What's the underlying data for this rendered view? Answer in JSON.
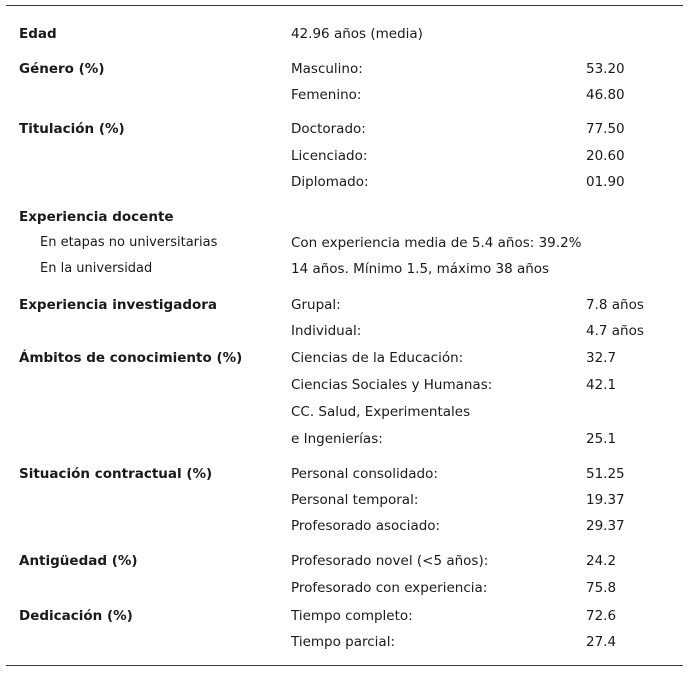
{
  "table": {
    "rows": [
      {
        "label": "Edad",
        "value": "42.96 años (media)"
      },
      {
        "label": "Género (%)",
        "items": [
          {
            "name": "Masculino:",
            "value": "53.20"
          },
          {
            "name": "Femenino:",
            "value": "46.80"
          }
        ]
      },
      {
        "label": "Titulación (%)",
        "items": [
          {
            "name": "Doctorado:",
            "value": "77.50"
          },
          {
            "name": "Licenciado:",
            "value": "20.60"
          },
          {
            "name": "Diplomado:",
            "value": "01.90"
          }
        ]
      },
      {
        "label": "Experiencia docente",
        "subitems": [
          {
            "name": "En etapas no universitarias",
            "value": "Con experiencia media de 5.4 años: 39.2%"
          },
          {
            "name": "En la universidad",
            "value": "14 años. Mínimo 1.5, máximo 38 años"
          }
        ]
      },
      {
        "label": "Experiencia investigadora",
        "items": [
          {
            "name": "Grupal:",
            "value": "7.8 años"
          },
          {
            "name": "Individual:",
            "value": "4.7 años"
          }
        ]
      },
      {
        "label": "Ámbitos de conocimiento (%)",
        "items": [
          {
            "name": "Ciencias de la Educación:",
            "value": "32.7"
          },
          {
            "name": "Ciencias Sociales y Humanas:",
            "value": "42.1"
          },
          {
            "name": "CC. Salud, Experimentales",
            "value": ""
          },
          {
            "name": "e Ingenierías:",
            "value": "25.1"
          }
        ]
      },
      {
        "label": "Situación contractual (%)",
        "items": [
          {
            "name": "Personal consolidado:",
            "value": "51.25"
          },
          {
            "name": "Personal temporal:",
            "value": "19.37"
          },
          {
            "name": "Profesorado asociado:",
            "value": "29.37"
          }
        ]
      },
      {
        "label": "Antigüedad (%)",
        "items": [
          {
            "name": "Profesorado novel (<5 años):",
            "value": "24.2"
          },
          {
            "name": "Profesorado con experiencia:",
            "value": "75.8"
          }
        ]
      },
      {
        "label": "Dedicación (%)",
        "items": [
          {
            "name": "Tiempo completo:",
            "value": "72.6"
          },
          {
            "name": "Tiempo parcial:",
            "value": "27.4"
          }
        ]
      }
    ]
  }
}
